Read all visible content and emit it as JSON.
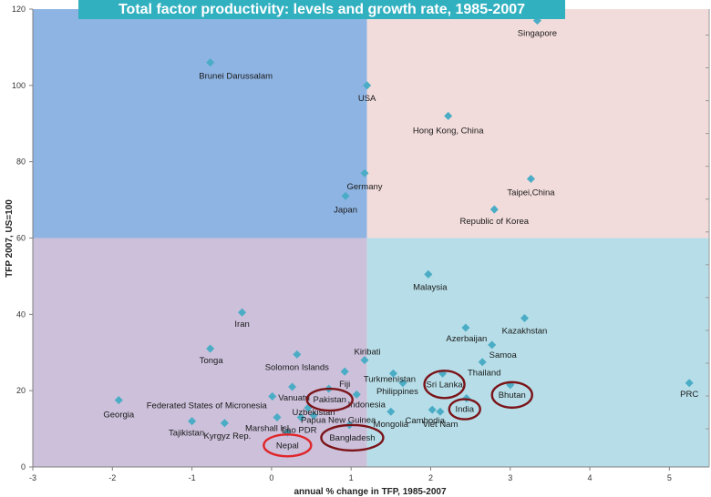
{
  "chart_data": {
    "type": "scatter",
    "title": "Total factor productivity: levels and growth rate, 1985-2007",
    "xlabel": "annual % change in TFP, 1985-2007",
    "ylabel": "TFP 2007, US=100",
    "xlim": [
      -3,
      5.5
    ],
    "ylim": [
      0,
      120
    ],
    "xticks": [
      -3,
      -2,
      -1,
      0,
      1,
      2,
      3,
      4,
      5
    ],
    "yticks": [
      0,
      20,
      40,
      60,
      80,
      100,
      120
    ],
    "quadrant_split": {
      "x": 1.2,
      "y": 60
    },
    "quadrant_colors": {
      "top_left": "#8eb4e3",
      "top_right": "#f2dcdb",
      "bottom_left": "#ccc0da",
      "bottom_right": "#b7dee8"
    },
    "marker_color": "#4bacc6",
    "title_bg": "#31b0c0",
    "highlight_colors": {
      "default": "#7b1419",
      "nepal": "#e0262a"
    },
    "points": [
      {
        "label": "Singapore",
        "x": 3.34,
        "y": 117,
        "highlight": false
      },
      {
        "label": "Brunei Darussalam",
        "x": -0.77,
        "y": 106,
        "highlight": false
      },
      {
        "label": "USA",
        "x": 1.2,
        "y": 100,
        "highlight": false
      },
      {
        "label": "Hong Kong, China",
        "x": 2.22,
        "y": 92,
        "highlight": false
      },
      {
        "label": "Germany",
        "x": 1.17,
        "y": 77,
        "highlight": false
      },
      {
        "label": "Japan",
        "x": 0.93,
        "y": 71,
        "highlight": false
      },
      {
        "label": "Taipei,China",
        "x": 3.26,
        "y": 75.5,
        "highlight": false
      },
      {
        "label": "Republic of Korea",
        "x": 2.8,
        "y": 67.5,
        "highlight": false
      },
      {
        "label": "Malaysia",
        "x": 1.97,
        "y": 50.5,
        "highlight": false
      },
      {
        "label": "Iran",
        "x": -0.37,
        "y": 40.5,
        "highlight": false
      },
      {
        "label": "Kazakhstan",
        "x": 3.18,
        "y": 39,
        "highlight": false
      },
      {
        "label": "Azerbaijan",
        "x": 2.44,
        "y": 36.5,
        "highlight": false
      },
      {
        "label": "Samoa",
        "x": 2.77,
        "y": 32,
        "highlight": false
      },
      {
        "label": "Tonga",
        "x": -0.77,
        "y": 31,
        "highlight": false
      },
      {
        "label": "Solomon Islands",
        "x": 0.32,
        "y": 29.5,
        "highlight": false
      },
      {
        "label": "Kiribati",
        "x": 1.17,
        "y": 28,
        "highlight": false
      },
      {
        "label": "Thailand",
        "x": 2.65,
        "y": 27.5,
        "highlight": false
      },
      {
        "label": "Turkmenistan",
        "x": 1.53,
        "y": 24.5,
        "highlight": false
      },
      {
        "label": "Sri Lanka",
        "x": 2.15,
        "y": 24.5,
        "highlight": true
      },
      {
        "label": "Fiji",
        "x": 0.92,
        "y": 25,
        "highlight": false
      },
      {
        "label": "Philippines",
        "x": 1.65,
        "y": 22,
        "highlight": false
      },
      {
        "label": "PRC",
        "x": 5.25,
        "y": 22,
        "highlight": false
      },
      {
        "label": "Bhutan",
        "x": 3.0,
        "y": 21.5,
        "highlight": true
      },
      {
        "label": "Vanuatu",
        "x": 0.26,
        "y": 21,
        "highlight": false
      },
      {
        "label": "Pakistan",
        "x": 0.72,
        "y": 20.5,
        "highlight": true
      },
      {
        "label": "Indonesia",
        "x": 1.07,
        "y": 19,
        "highlight": false
      },
      {
        "label": "India",
        "x": 2.45,
        "y": 18,
        "highlight": true
      },
      {
        "label": "Georgia",
        "x": -1.92,
        "y": 17.5,
        "highlight": false
      },
      {
        "label": "Federated States of Micronesia",
        "x": 0.01,
        "y": 18.5,
        "highlight": false
      },
      {
        "label": "Uzbekistan",
        "x": 0.46,
        "y": 15.5,
        "highlight": false
      },
      {
        "label": "Cambodia",
        "x": 2.02,
        "y": 15,
        "highlight": false
      },
      {
        "label": "Viet Nam",
        "x": 2.12,
        "y": 14.5,
        "highlight": false
      },
      {
        "label": "Mongolia",
        "x": 1.5,
        "y": 14.5,
        "highlight": false
      },
      {
        "label": "Papua New Guinea",
        "x": 0.53,
        "y": 13.5,
        "highlight": false
      },
      {
        "label": "Marshall Isl",
        "x": 0.07,
        "y": 13,
        "highlight": false
      },
      {
        "label": "Lao PDR",
        "x": 0.37,
        "y": 13,
        "highlight": false
      },
      {
        "label": "Tajikistan",
        "x": -1.0,
        "y": 12,
        "highlight": false
      },
      {
        "label": "Kyrgyz Rep.",
        "x": -0.59,
        "y": 11.5,
        "highlight": false
      },
      {
        "label": "Bangladesh",
        "x": 0.98,
        "y": 11,
        "highlight": true
      },
      {
        "label": "Nepal",
        "x": 0.2,
        "y": 9,
        "highlight": true
      }
    ]
  }
}
